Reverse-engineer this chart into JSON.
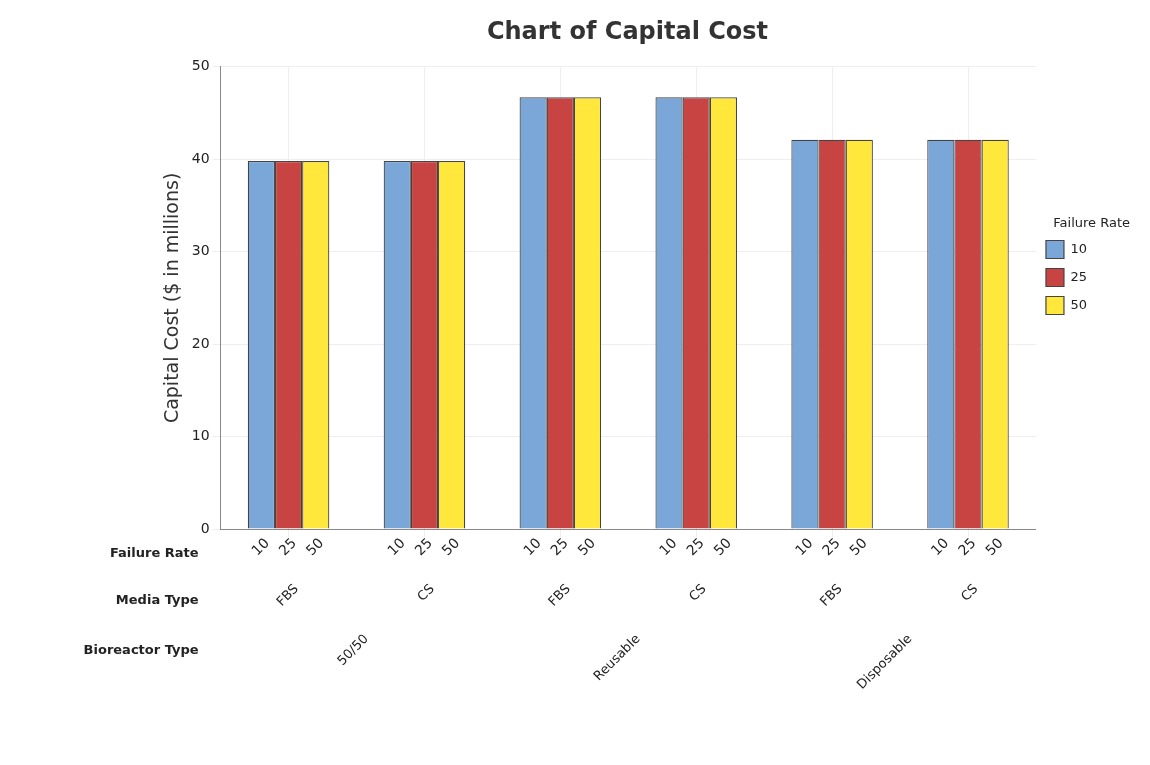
{
  "chart_data": {
    "type": "bar",
    "title": "Chart of Capital Cost",
    "ylabel": "Capital Cost ($ in millions)",
    "legend_title": "Failure Rate",
    "categories": [
      "FBS",
      "CS",
      "FBS",
      "CS",
      "FBS",
      "CS"
    ],
    "series": [
      {
        "name": "10",
        "color": "#7ba6d8",
        "values": [
          39.8,
          39.8,
          46.7,
          46.7,
          42.1,
          42.1
        ]
      },
      {
        "name": "25",
        "color": "#c84442",
        "values": [
          39.8,
          39.8,
          46.7,
          46.7,
          42.1,
          42.1
        ]
      },
      {
        "name": "50",
        "color": "#ffe83b",
        "values": [
          39.8,
          39.8,
          46.7,
          46.7,
          42.1,
          42.1
        ]
      }
    ],
    "ylim": [
      0,
      50
    ],
    "yticks": [
      0,
      10,
      20,
      30,
      40,
      50
    ],
    "grid": true,
    "legend": "right",
    "annotations": [
      "Failure Rate",
      "Media Type",
      "Bioreactor Type",
      "50/50",
      "Reusable",
      "Disposable"
    ]
  }
}
